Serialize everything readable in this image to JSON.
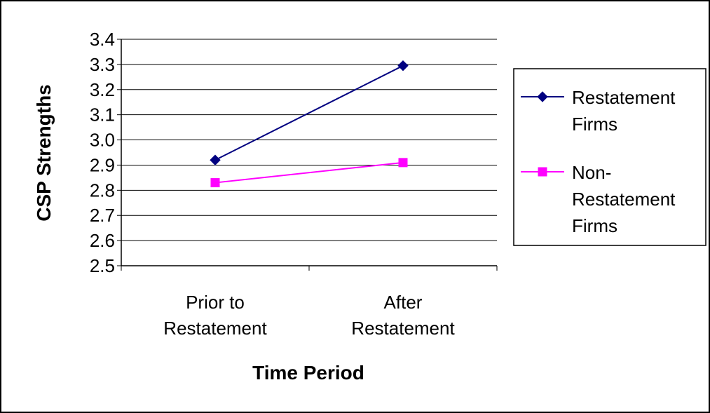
{
  "chart_data": {
    "type": "line",
    "title": "",
    "xlabel": "Time Period",
    "ylabel": "CSP Strengths",
    "categories": [
      [
        "Prior to",
        "Restatement"
      ],
      [
        "After",
        "Restatement"
      ]
    ],
    "y_ticks": [
      "3.4",
      "3.3",
      "3.2",
      "3.1",
      "3.0",
      "2.9",
      "2.8",
      "2.7",
      "2.6",
      "2.5"
    ],
    "ylim": [
      2.5,
      3.4
    ],
    "grid": "horizontal",
    "legend_position": "right",
    "series": [
      {
        "name": [
          "Restatement",
          "Firms"
        ],
        "values": [
          2.92,
          3.295
        ],
        "color": "#000080",
        "marker": "diamond"
      },
      {
        "name": [
          "Non-",
          "Restatement",
          "Firms"
        ],
        "values": [
          2.83,
          2.91
        ],
        "color": "#ff00ff",
        "marker": "square"
      }
    ]
  }
}
